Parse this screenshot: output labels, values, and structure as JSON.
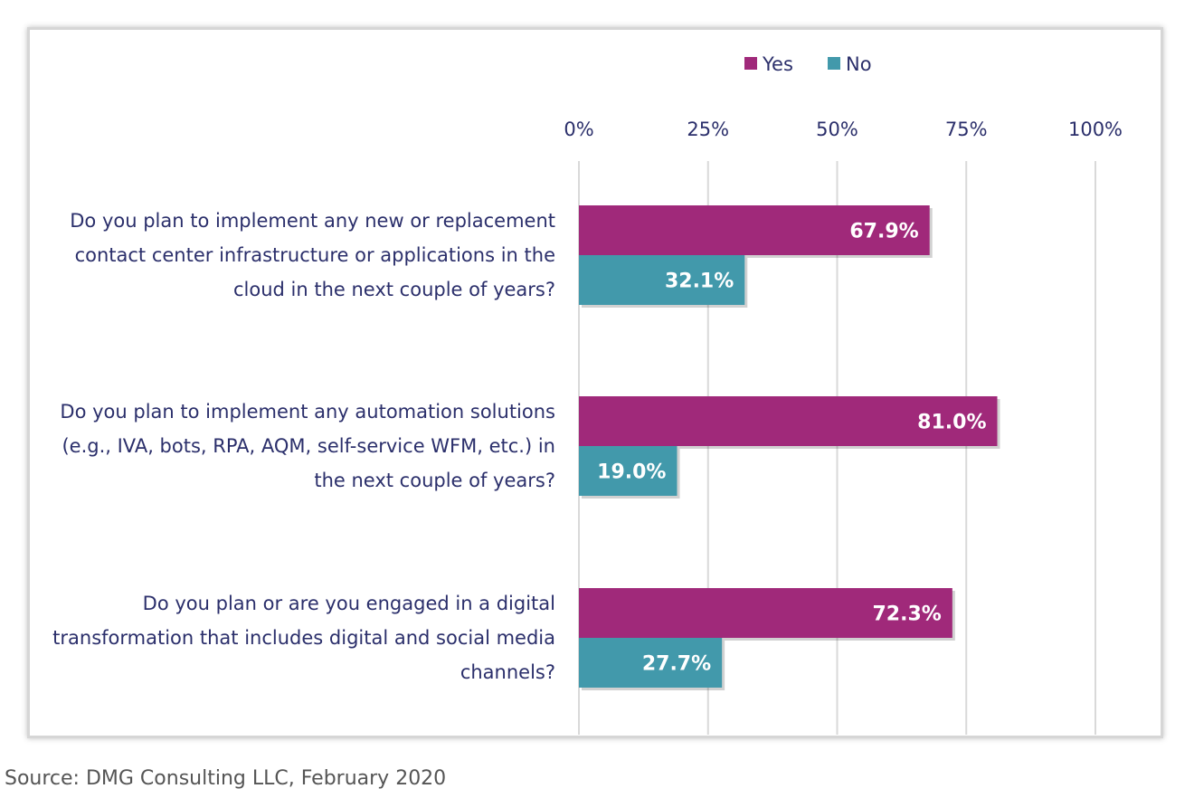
{
  "colors": {
    "yes": "#a0297a",
    "no": "#4299ab",
    "grid": "#d9d9d9",
    "text": "#2b2f6b"
  },
  "source": "Source: DMG Consulting LLC, February 2020",
  "chart_data": {
    "type": "bar",
    "orientation": "horizontal",
    "categories": [
      [
        "Do you plan to implement any new or replacement",
        "contact center infrastructure or applications in the",
        "cloud in the next couple of years?"
      ],
      [
        "Do you plan to implement any automation solutions",
        "(e.g., IVA, bots, RPA, AQM, self-service WFM, etc.) in",
        "the next couple of years?"
      ],
      [
        "Do you plan or are you engaged in a digital",
        "transformation that includes digital and social media",
        "channels?"
      ]
    ],
    "series": [
      {
        "name": "Yes",
        "values": [
          67.9,
          81.0,
          72.3
        ],
        "labels": [
          "67.9%",
          "81.0%",
          "72.3%"
        ],
        "color": "#a0297a"
      },
      {
        "name": "No",
        "values": [
          32.1,
          19.0,
          27.7
        ],
        "labels": [
          "32.1%",
          "19.0%",
          "27.7%"
        ],
        "color": "#4299ab"
      }
    ],
    "xlim": [
      0,
      100
    ],
    "ticks": [
      "0%",
      "25%",
      "50%",
      "75%",
      "100%"
    ],
    "tick_values": [
      0,
      25,
      50,
      75,
      100
    ],
    "x_axis_position": "top",
    "grid": true,
    "legend": "top"
  }
}
